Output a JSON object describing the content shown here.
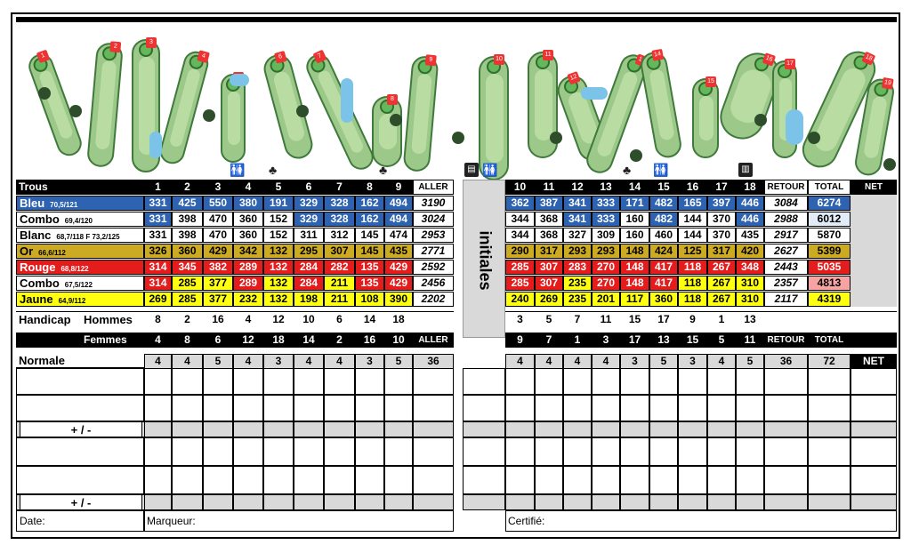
{
  "front_holes": [
    "1",
    "2",
    "3",
    "4",
    "5",
    "6",
    "7",
    "8",
    "9"
  ],
  "back_holes": [
    "10",
    "11",
    "12",
    "13",
    "14",
    "15",
    "16",
    "17",
    "18"
  ],
  "header": {
    "trous": "Trous",
    "aller": "ALLER",
    "retour": "RETOUR",
    "total": "TOTAL",
    "net": "NET"
  },
  "initiales": "initiales",
  "tees": [
    {
      "name": "Bleu",
      "rating": "70,5/121",
      "color": "blue",
      "front": [
        "331",
        "425",
        "550",
        "380",
        "191",
        "329",
        "328",
        "162",
        "494"
      ],
      "aller": "3190",
      "back": [
        "362",
        "387",
        "341",
        "333",
        "171",
        "482",
        "165",
        "397",
        "446"
      ],
      "retour": "3084",
      "total": "6274"
    },
    {
      "name": "Combo",
      "rating": "69,4/120",
      "color": "mixed1",
      "front": [
        "331",
        "398",
        "470",
        "360",
        "152",
        "329",
        "328",
        "162",
        "494"
      ],
      "aller": "3024",
      "back": [
        "344",
        "368",
        "341",
        "333",
        "160",
        "482",
        "144",
        "370",
        "446"
      ],
      "retour": "2988",
      "total": "6012"
    },
    {
      "name": "Blanc",
      "rating": "68,7/118  F 73,2/125",
      "color": "white",
      "front": [
        "331",
        "398",
        "470",
        "360",
        "152",
        "311",
        "312",
        "145",
        "474"
      ],
      "aller": "2953",
      "back": [
        "344",
        "368",
        "327",
        "309",
        "160",
        "460",
        "144",
        "370",
        "435"
      ],
      "retour": "2917",
      "total": "5870"
    },
    {
      "name": "Or",
      "rating": "66,6/112",
      "color": "gold",
      "front": [
        "326",
        "360",
        "429",
        "342",
        "132",
        "295",
        "307",
        "145",
        "435"
      ],
      "aller": "2771",
      "back": [
        "290",
        "317",
        "293",
        "293",
        "148",
        "424",
        "125",
        "317",
        "420"
      ],
      "retour": "2627",
      "total": "5399"
    },
    {
      "name": "Rouge",
      "rating": "68,8/122",
      "color": "red",
      "front": [
        "314",
        "345",
        "382",
        "289",
        "132",
        "284",
        "282",
        "135",
        "429"
      ],
      "aller": "2592",
      "back": [
        "285",
        "307",
        "283",
        "270",
        "148",
        "417",
        "118",
        "267",
        "348"
      ],
      "retour": "2443",
      "total": "5035"
    },
    {
      "name": "Combo",
      "rating": "67,5/122",
      "color": "mixed2",
      "front": [
        "314",
        "285",
        "377",
        "289",
        "132",
        "284",
        "211",
        "135",
        "429"
      ],
      "aller": "2456",
      "back": [
        "285",
        "307",
        "235",
        "270",
        "148",
        "417",
        "118",
        "267",
        "310"
      ],
      "retour": "2357",
      "total": "4813"
    },
    {
      "name": "Jaune",
      "rating": "64,9/112",
      "color": "yellow",
      "front": [
        "269",
        "285",
        "377",
        "232",
        "132",
        "198",
        "211",
        "108",
        "390"
      ],
      "aller": "2202",
      "back": [
        "240",
        "269",
        "235",
        "201",
        "117",
        "360",
        "118",
        "267",
        "310"
      ],
      "retour": "2117",
      "total": "4319"
    }
  ],
  "handicap": {
    "label": "Handicap",
    "men_label": "Hommes",
    "women_label": "Femmes",
    "men_front": [
      "8",
      "2",
      "16",
      "4",
      "12",
      "10",
      "6",
      "14",
      "18"
    ],
    "men_back": [
      "3",
      "5",
      "7",
      "11",
      "15",
      "17",
      "9",
      "1",
      "13"
    ],
    "women_front": [
      "4",
      "8",
      "6",
      "12",
      "18",
      "14",
      "2",
      "16",
      "10"
    ],
    "women_back": [
      "9",
      "7",
      "1",
      "3",
      "17",
      "13",
      "15",
      "5",
      "11"
    ]
  },
  "par": {
    "label": "Normale",
    "front": [
      "4",
      "4",
      "5",
      "4",
      "3",
      "4",
      "4",
      "3",
      "5"
    ],
    "aller": "36",
    "back": [
      "4",
      "4",
      "4",
      "4",
      "3",
      "5",
      "3",
      "4",
      "5"
    ],
    "retour": "36",
    "total": "72",
    "net": "NET"
  },
  "plus_minus": "+ / -",
  "footer": {
    "date": "Date:",
    "marqueur": "Marqueur:",
    "certifie": "Certifié:"
  },
  "colors": {
    "blue": "#2e63b1",
    "gold": "#ccaa22",
    "red": "#e41c1c",
    "yellow": "#ffff10",
    "grey": "#d9d9d9"
  },
  "icons": [
    "restroom-icon",
    "bench-icon",
    "water-fountain-icon",
    "tree-icon"
  ]
}
